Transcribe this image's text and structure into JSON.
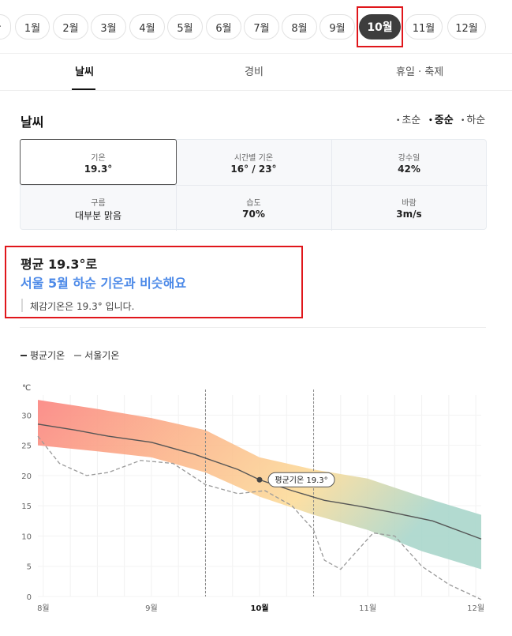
{
  "months": {
    "partial_label": "·",
    "items": [
      {
        "label": "1월"
      },
      {
        "label": "2월"
      },
      {
        "label": "3월"
      },
      {
        "label": "4월"
      },
      {
        "label": "5월"
      },
      {
        "label": "6월"
      },
      {
        "label": "7월"
      },
      {
        "label": "8월"
      },
      {
        "label": "9월"
      },
      {
        "label": "10월",
        "selected": true
      },
      {
        "label": "11월"
      },
      {
        "label": "12월"
      }
    ]
  },
  "tabs": [
    "날씨",
    "경비",
    "휴일 · 축제"
  ],
  "section": {
    "title": "날씨",
    "periods": [
      {
        "label": "초순",
        "selected": false
      },
      {
        "label": "중순",
        "selected": true
      },
      {
        "label": "하순",
        "selected": false
      }
    ]
  },
  "stats": [
    {
      "label": "기온",
      "value": "19.3°"
    },
    {
      "label": "시간별 기온",
      "value": "16° / 23°"
    },
    {
      "label": "강수일",
      "value": "42%"
    },
    {
      "label": "구름",
      "value": "대부분 맑음"
    },
    {
      "label": "습도",
      "value": "70%"
    },
    {
      "label": "바람",
      "value": "3m/s"
    }
  ],
  "summary": {
    "line1": "평균 19.3°로",
    "line2": "서울 5월 하순 기온과 비슷해요",
    "feel": "체감기온은 19.3° 입니다."
  },
  "legend": {
    "avg": "평균기온",
    "seoul": "서울기온"
  },
  "colors": {
    "accent_blue": "#4d8ae8",
    "highlight_red": "#e0161b",
    "active_pill": "#3d3d3d"
  },
  "chart_data": {
    "type": "line",
    "unit_label": "℃",
    "ylim": [
      0,
      32
    ],
    "yticks": [
      0,
      5,
      10,
      15,
      20,
      25,
      30
    ],
    "xlim": [
      7.95,
      12.05
    ],
    "xticks": [
      {
        "value": 8,
        "label": "8월"
      },
      {
        "value": 9,
        "label": "9월"
      },
      {
        "value": 10,
        "label": "10월",
        "bold": true
      },
      {
        "value": 11,
        "label": "11월"
      },
      {
        "value": 12,
        "label": "12월"
      }
    ],
    "band": {
      "x": [
        7.95,
        8.5,
        9.0,
        9.5,
        10.0,
        10.5,
        11.0,
        11.5,
        12.05
      ],
      "high": [
        32.5,
        31.0,
        29.5,
        27.5,
        23.0,
        21.0,
        19.5,
        16.5,
        13.5
      ],
      "low": [
        25.0,
        24.0,
        23.0,
        20.5,
        16.5,
        13.5,
        11.0,
        7.5,
        4.5
      ]
    },
    "series": [
      {
        "name": "평균기온",
        "x": [
          7.95,
          8.3,
          8.6,
          9.0,
          9.4,
          9.8,
          10.0,
          10.3,
          10.6,
          10.9,
          11.2,
          11.6,
          12.05
        ],
        "y": [
          28.5,
          27.5,
          26.5,
          25.5,
          23.5,
          21.0,
          19.3,
          17.5,
          15.9,
          15.0,
          14.0,
          12.5,
          9.5
        ]
      },
      {
        "name": "서울기온",
        "dashed": true,
        "x": [
          7.95,
          8.15,
          8.4,
          8.6,
          8.9,
          9.2,
          9.5,
          9.8,
          10.05,
          10.3,
          10.5,
          10.6,
          10.75,
          10.9,
          11.05,
          11.25,
          11.5,
          11.75,
          12.05
        ],
        "y": [
          26.5,
          22.0,
          20.0,
          20.5,
          22.5,
          22.0,
          18.5,
          17.0,
          17.5,
          15.0,
          11.0,
          6.0,
          4.5,
          7.5,
          10.5,
          10.0,
          5.0,
          2.0,
          -0.5
        ]
      }
    ],
    "vlines": [
      9.5,
      10.5
    ],
    "marker": {
      "x": 10.0,
      "y": 19.3,
      "label": "평균기온 19.3°"
    }
  }
}
